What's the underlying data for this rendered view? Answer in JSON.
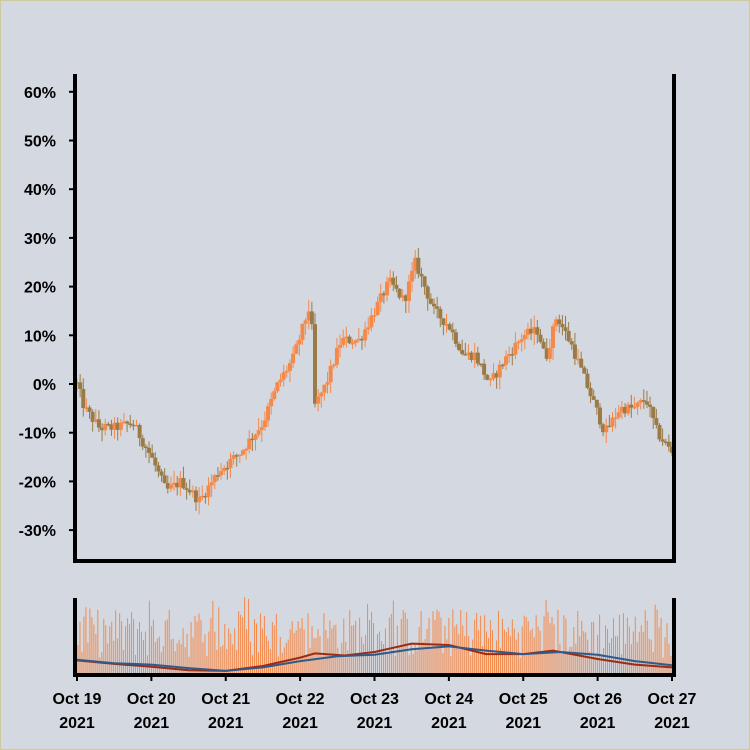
{
  "chart_data": {
    "type": "candlestick",
    "title": "",
    "xlabel": "",
    "ylabel": "",
    "y_unit": "%",
    "ylim": [
      -37,
      64
    ],
    "yticks": [
      "60%",
      "50%",
      "40%",
      "30%",
      "20%",
      "10%",
      "0%",
      "-10%",
      "-20%",
      "-30%"
    ],
    "ytick_values": [
      60,
      50,
      40,
      30,
      20,
      10,
      0,
      -10,
      -20,
      -30
    ],
    "x_range": [
      "2021-10-19",
      "2021-10-27"
    ],
    "xticks": [
      {
        "line1": "Oct 19",
        "line2": "2021"
      },
      {
        "line1": "Oct 20",
        "line2": "2021"
      },
      {
        "line1": "Oct 21",
        "line2": "2021"
      },
      {
        "line1": "Oct 22",
        "line2": "2021"
      },
      {
        "line1": "Oct 23",
        "line2": "2021"
      },
      {
        "line1": "Oct 24",
        "line2": "2021"
      },
      {
        "line1": "Oct 25",
        "line2": "2021"
      },
      {
        "line1": "Oct 26",
        "line2": "2021"
      },
      {
        "line1": "Oct 27",
        "line2": "2021"
      }
    ],
    "x_days": [
      0,
      1,
      2,
      3,
      4,
      5,
      6,
      7,
      8
    ],
    "grid": false,
    "colors": {
      "up": "#f4894a",
      "down": "#9a7a45",
      "volume": "#f4894a",
      "ma_fast": "#9b2c13",
      "ma_slow": "#2e5a8c"
    },
    "close_path": [
      [
        0.0,
        0
      ],
      [
        0.1,
        -5
      ],
      [
        0.3,
        -9
      ],
      [
        0.5,
        -9
      ],
      [
        0.75,
        -8
      ],
      [
        1.0,
        -15
      ],
      [
        1.2,
        -22
      ],
      [
        1.4,
        -20
      ],
      [
        1.65,
        -24
      ],
      [
        1.9,
        -18
      ],
      [
        2.2,
        -14
      ],
      [
        2.5,
        -8
      ],
      [
        2.7,
        0
      ],
      [
        2.9,
        5
      ],
      [
        3.15,
        17
      ],
      [
        3.18,
        -5
      ],
      [
        3.35,
        0
      ],
      [
        3.55,
        9
      ],
      [
        3.8,
        9
      ],
      [
        4.0,
        15
      ],
      [
        4.2,
        21
      ],
      [
        4.4,
        17
      ],
      [
        4.55,
        25
      ],
      [
        4.8,
        15
      ],
      [
        5.0,
        12
      ],
      [
        5.2,
        6
      ],
      [
        5.35,
        6
      ],
      [
        5.55,
        0
      ],
      [
        5.75,
        5
      ],
      [
        6.0,
        10
      ],
      [
        6.2,
        11
      ],
      [
        6.3,
        5
      ],
      [
        6.45,
        14
      ],
      [
        6.65,
        8
      ],
      [
        6.9,
        -2
      ],
      [
        7.1,
        -10
      ],
      [
        7.3,
        -5
      ],
      [
        7.5,
        -5
      ],
      [
        7.65,
        -3
      ],
      [
        7.8,
        -10
      ],
      [
        8.0,
        -14
      ]
    ],
    "volume_ylim": [
      0,
      100
    ],
    "ma_fast": [
      [
        0.0,
        18
      ],
      [
        0.5,
        13
      ],
      [
        1.0,
        9
      ],
      [
        1.5,
        4
      ],
      [
        2.0,
        3
      ],
      [
        2.5,
        10
      ],
      [
        3.0,
        22
      ],
      [
        3.2,
        28
      ],
      [
        3.6,
        25
      ],
      [
        4.0,
        30
      ],
      [
        4.5,
        42
      ],
      [
        5.0,
        40
      ],
      [
        5.5,
        27
      ],
      [
        6.0,
        27
      ],
      [
        6.4,
        32
      ],
      [
        7.0,
        20
      ],
      [
        7.5,
        12
      ],
      [
        8.0,
        8
      ]
    ],
    "ma_slow": [
      [
        0.0,
        19
      ],
      [
        0.5,
        14
      ],
      [
        1.0,
        12
      ],
      [
        1.5,
        7
      ],
      [
        2.0,
        3
      ],
      [
        2.5,
        8
      ],
      [
        3.0,
        17
      ],
      [
        3.5,
        24
      ],
      [
        4.0,
        26
      ],
      [
        4.5,
        34
      ],
      [
        5.0,
        38
      ],
      [
        5.5,
        32
      ],
      [
        6.0,
        27
      ],
      [
        6.5,
        30
      ],
      [
        7.0,
        26
      ],
      [
        7.5,
        17
      ],
      [
        8.0,
        11
      ]
    ]
  }
}
